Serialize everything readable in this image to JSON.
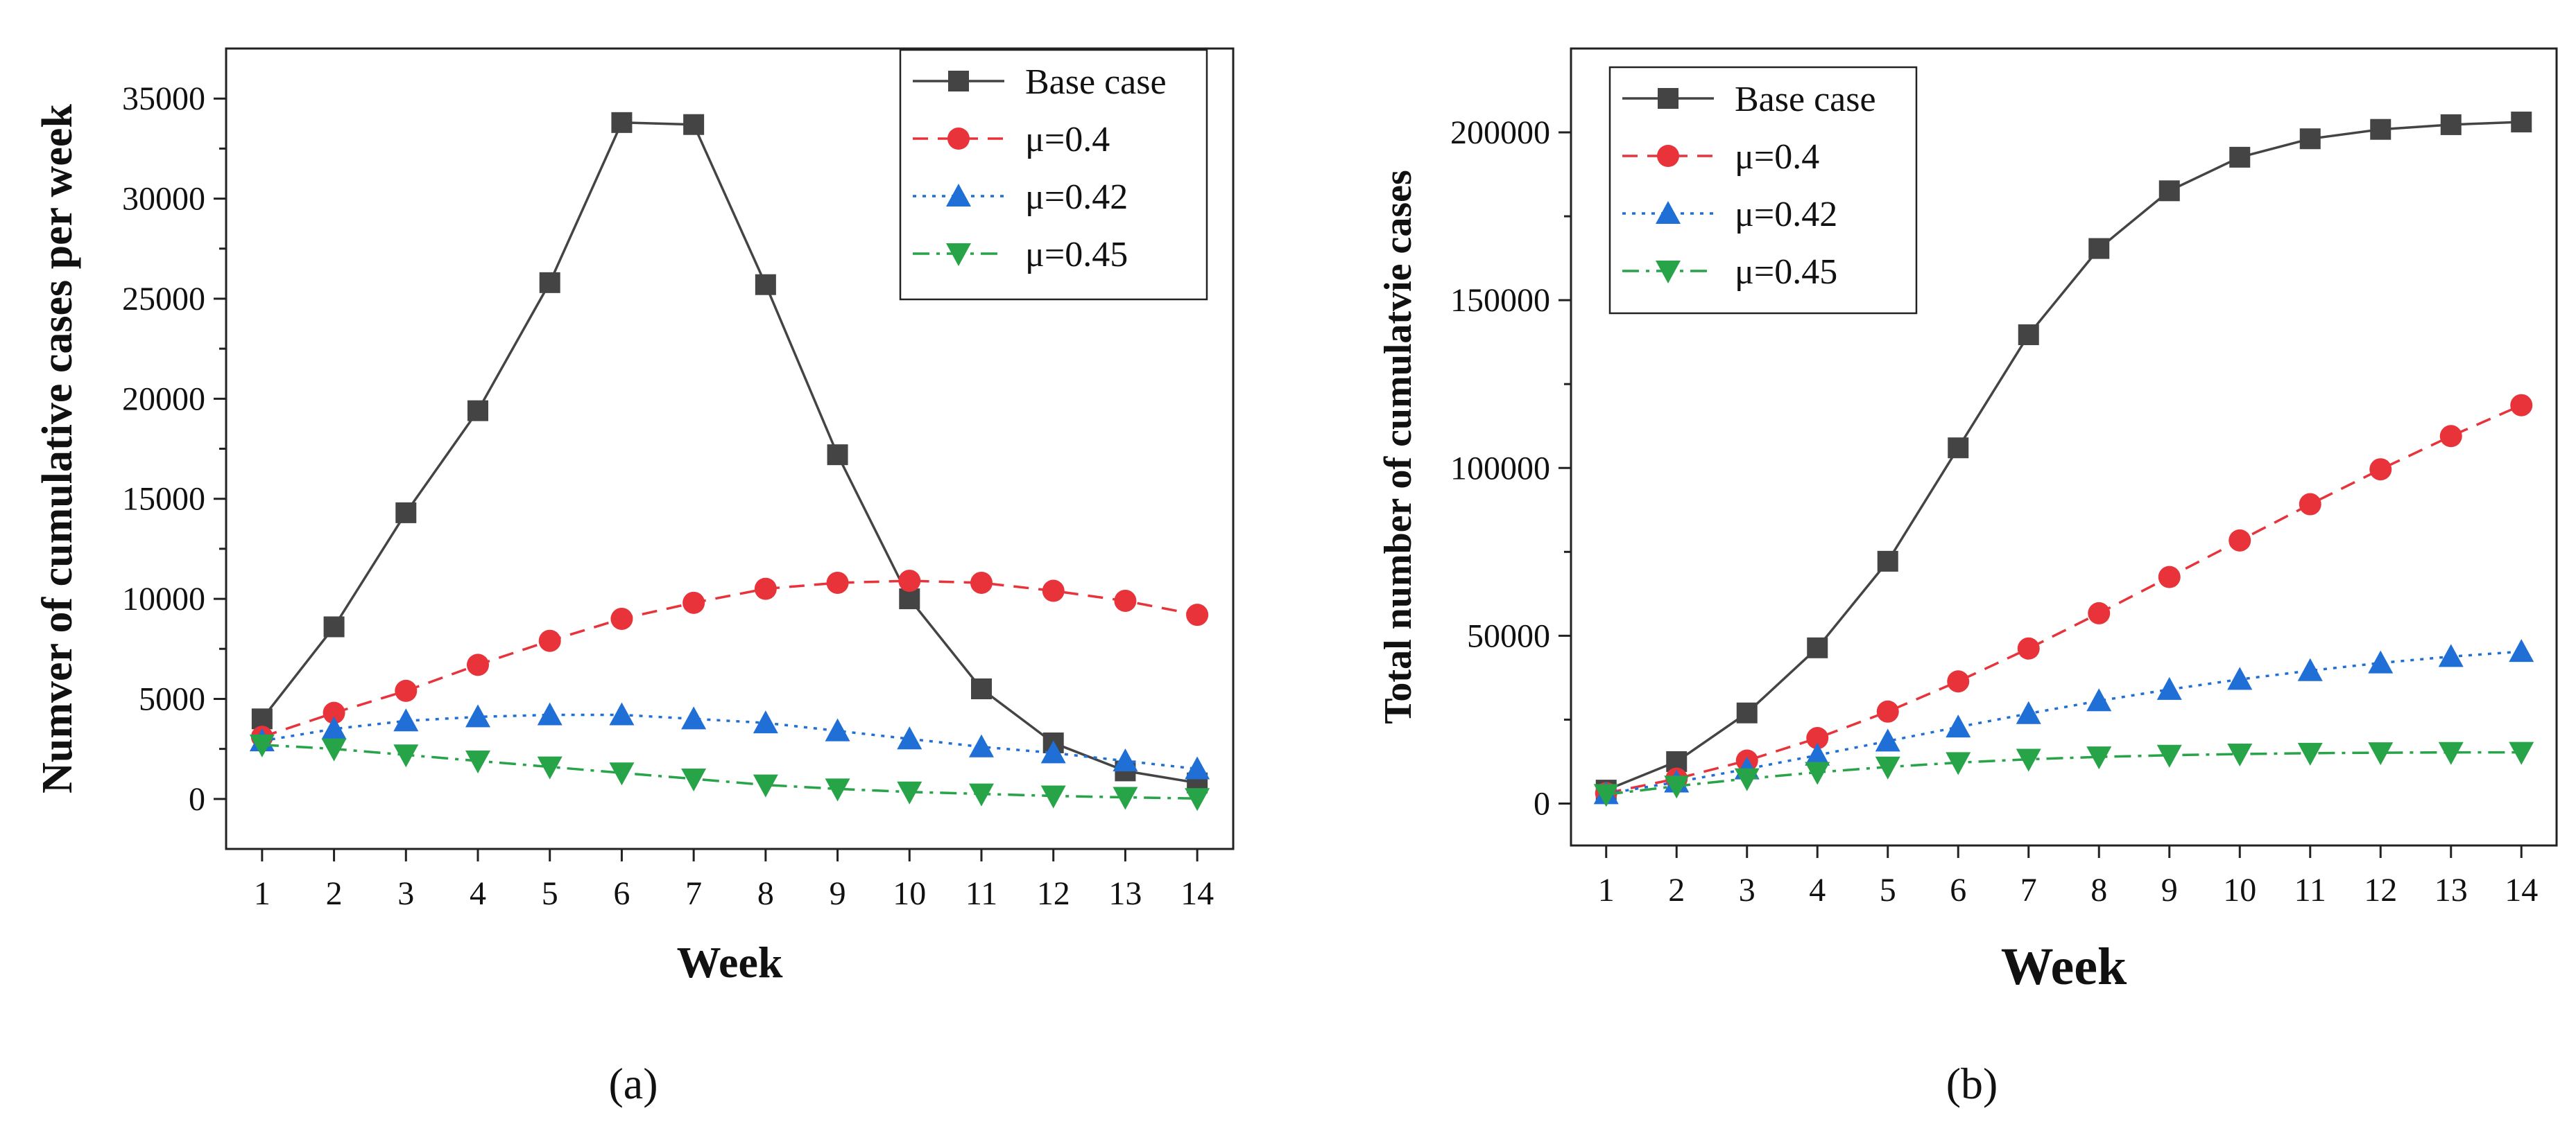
{
  "chart_data": [
    {
      "type": "line",
      "caption": "(a)",
      "xlabel": "Week",
      "ylabel": "Numver of cumulative cases per week",
      "x": [
        1,
        2,
        3,
        4,
        5,
        6,
        7,
        8,
        9,
        10,
        11,
        12,
        13,
        14
      ],
      "xlim": [
        0.5,
        14.5
      ],
      "ylim": [
        -2500,
        37500
      ],
      "yticks": [
        0,
        5000,
        10000,
        15000,
        20000,
        25000,
        30000,
        35000
      ],
      "legend_position": "top-right",
      "series": [
        {
          "name": "Base case",
          "color": "#444444",
          "marker": "square",
          "dash": "solid",
          "values": [
            4000,
            8600,
            14300,
            19400,
            25800,
            33800,
            33700,
            25700,
            17200,
            10000,
            5500,
            2800,
            1400,
            800
          ]
        },
        {
          "name": "μ=0.4",
          "color": "#e8333a",
          "marker": "circle",
          "dash": "dashed",
          "values": [
            3100,
            4300,
            5400,
            6700,
            7900,
            9000,
            9800,
            10500,
            10800,
            10900,
            10800,
            10400,
            9900,
            9200
          ]
        },
        {
          "name": "μ=0.42",
          "color": "#1f6fd6",
          "marker": "triangle-up",
          "dash": "dotted",
          "values": [
            2900,
            3500,
            3900,
            4100,
            4200,
            4200,
            4000,
            3800,
            3400,
            3000,
            2600,
            2300,
            1900,
            1500
          ]
        },
        {
          "name": "μ=0.45",
          "color": "#27a348",
          "marker": "triangle-down",
          "dash": "dashdot",
          "values": [
            2700,
            2500,
            2200,
            1900,
            1600,
            1300,
            1000,
            700,
            500,
            350,
            250,
            150,
            80,
            20
          ]
        }
      ]
    },
    {
      "type": "line",
      "caption": "(b)",
      "xlabel": "Week",
      "ylabel": "Total number of cumulatvie cases",
      "x": [
        1,
        2,
        3,
        4,
        5,
        6,
        7,
        8,
        9,
        10,
        11,
        12,
        13,
        14
      ],
      "xlim": [
        0.5,
        14.5
      ],
      "ylim": [
        -12500,
        225000
      ],
      "yticks": [
        0,
        50000,
        100000,
        150000,
        200000
      ],
      "legend_position": "top-left",
      "series": [
        {
          "name": "Base case",
          "color": "#444444",
          "marker": "square",
          "dash": "solid",
          "values": [
            4000,
            12500,
            27000,
            46400,
            72200,
            106000,
            139700,
            165400,
            182600,
            192600,
            198100,
            200900,
            202300,
            203100
          ]
        },
        {
          "name": "μ=0.4",
          "color": "#e8333a",
          "marker": "circle",
          "dash": "dashed",
          "values": [
            3100,
            7400,
            12800,
            19500,
            27400,
            36400,
            46200,
            56700,
            67500,
            78400,
            89200,
            99600,
            109500,
            118700
          ]
        },
        {
          "name": "μ=0.42",
          "color": "#1f6fd6",
          "marker": "triangle-up",
          "dash": "dotted",
          "values": [
            2900,
            6400,
            10300,
            14400,
            18600,
            22800,
            26800,
            30600,
            34000,
            37000,
            39600,
            41900,
            43800,
            45300
          ]
        },
        {
          "name": "μ=0.45",
          "color": "#27a348",
          "marker": "triangle-down",
          "dash": "dashdot",
          "values": [
            2700,
            5200,
            7400,
            9300,
            10900,
            12200,
            13200,
            13900,
            14400,
            14750,
            15000,
            15150,
            15230,
            15250
          ]
        }
      ]
    }
  ]
}
